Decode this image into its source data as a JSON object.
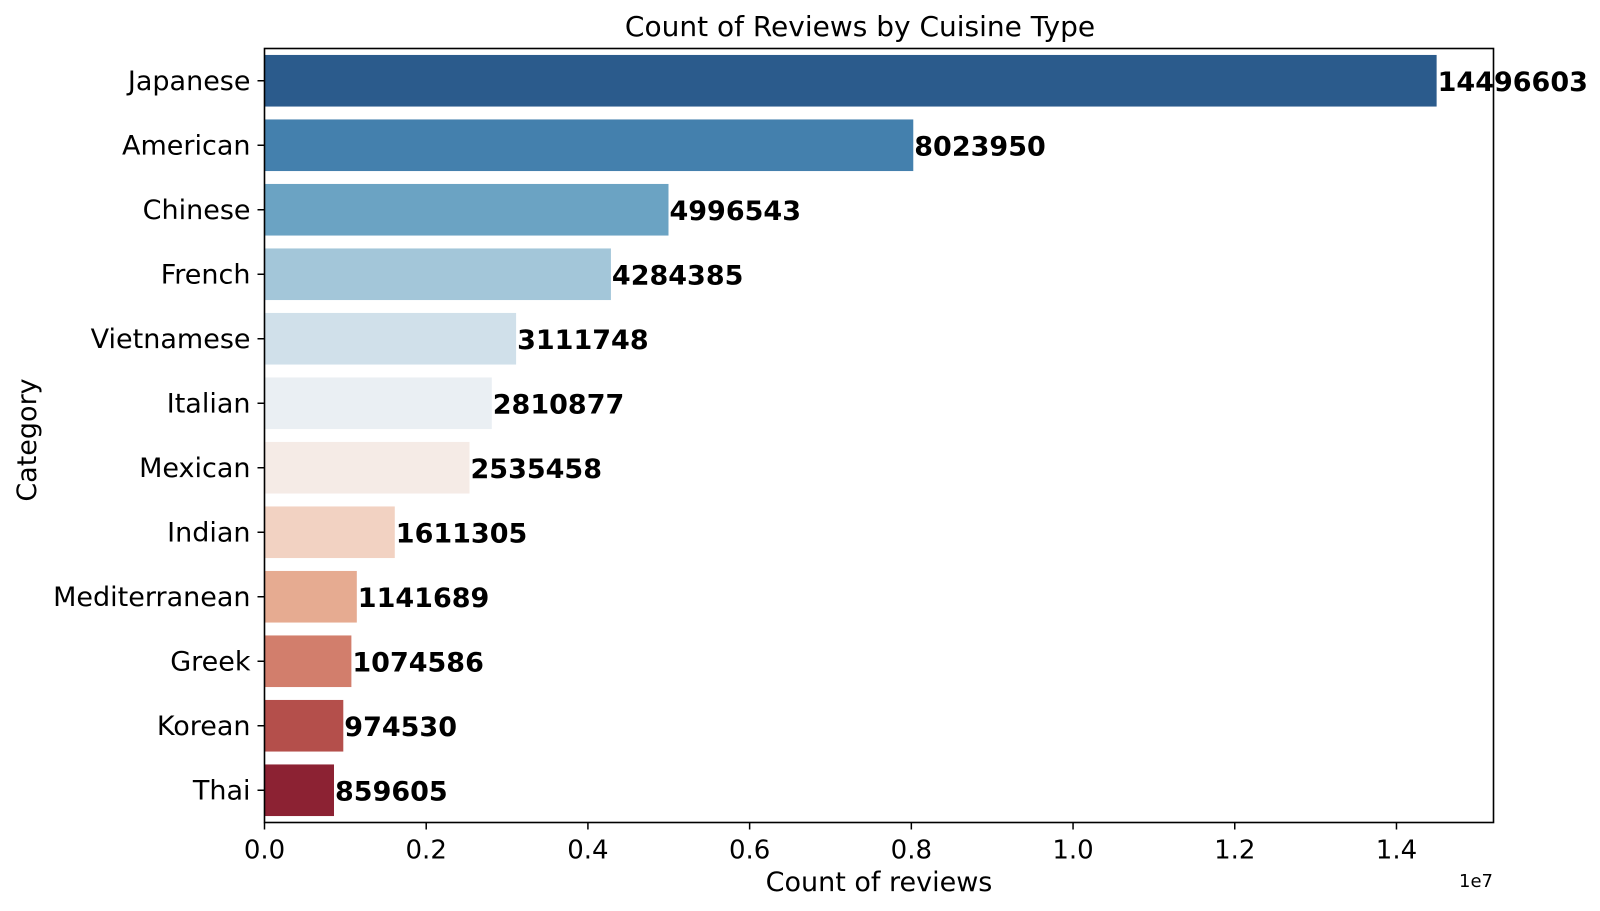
{
  "chart_data": {
    "type": "bar",
    "orientation": "horizontal",
    "title": "Count of Reviews by Cuisine Type",
    "xlabel": "Count of reviews",
    "ylabel": "Category",
    "x_offset_text": "1e7",
    "xlim": [
      0,
      15200000
    ],
    "xticks": [
      0,
      2000000,
      4000000,
      6000000,
      8000000,
      10000000,
      12000000,
      14000000
    ],
    "xtick_labels": [
      "0.0",
      "0.2",
      "0.4",
      "0.6",
      "0.8",
      "1.0",
      "1.2",
      "1.4"
    ],
    "categories": [
      "Japanese",
      "American",
      "Chinese",
      "French",
      "Vietnamese",
      "Italian",
      "Mexican",
      "Indian",
      "Mediterranean",
      "Greek",
      "Korean",
      "Thai"
    ],
    "values": [
      14496603,
      8023950,
      4996543,
      4284385,
      3111748,
      2810877,
      2535458,
      1611305,
      1141689,
      1074586,
      974530,
      859605
    ],
    "data_labels": [
      "14496603",
      "8023950",
      "4996543",
      "4284385",
      "3111748",
      "2810877",
      "2535458",
      "1611305",
      "1141689",
      "1074586",
      "974530",
      "859605"
    ],
    "colors": [
      "#2b5b8c",
      "#4480ad",
      "#6ba3c3",
      "#a3c6d9",
      "#d0e0ea",
      "#eaeff3",
      "#f5ebe6",
      "#f2d2c2",
      "#e6ab91",
      "#d27e6c",
      "#b44f4b",
      "#8c2233"
    ],
    "grid": false,
    "legend": "none"
  }
}
